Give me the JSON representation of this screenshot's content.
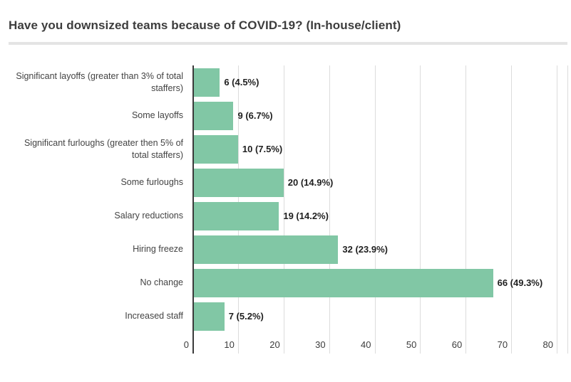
{
  "header": {
    "title": "Have you downsized teams because of COVID-19? (In-house/client)"
  },
  "chart_data": {
    "type": "bar",
    "orientation": "horizontal",
    "title": "Have you downsized teams because of COVID-19? (In-house/client)",
    "categories": [
      "Significant layoffs (greater than 3% of total staffers)",
      "Some layoffs",
      "Significant furloughs (greater then 5% of total staffers)",
      "Some furloughs",
      "Salary reductions",
      "Hiring freeze",
      "No change",
      "Increased staff"
    ],
    "values": [
      6,
      9,
      10,
      20,
      19,
      32,
      66,
      7
    ],
    "percentages": [
      4.5,
      6.7,
      7.5,
      14.9,
      14.2,
      23.9,
      49.3,
      5.2
    ],
    "value_labels": [
      "6 (4.5%)",
      "9 (6.7%)",
      "10 (7.5%)",
      "20 (14.9%)",
      "19 (14.2%)",
      "32 (23.9%)",
      "66 (49.3%)",
      "7 (5.2%)"
    ],
    "xlabel": "",
    "ylabel": "",
    "xlim": [
      0,
      82.5
    ],
    "x_ticks": [
      0,
      10,
      20,
      30,
      40,
      50,
      60,
      70,
      80
    ],
    "grid": true,
    "legend": false,
    "colors": {
      "bar": "#81c7a5",
      "gridline": "#dcdcdc",
      "axis": "#3a3a3a",
      "title": "#3d3d3d",
      "value_label": "#1f1f1f",
      "category_label": "#434343",
      "divider": "#e4e4e4",
      "background": "#ffffff"
    }
  }
}
